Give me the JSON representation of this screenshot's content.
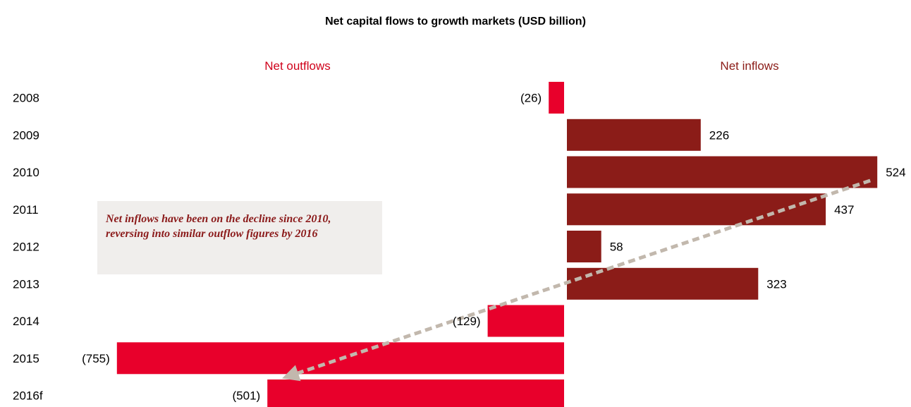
{
  "chart_data": {
    "type": "bar",
    "orientation": "horizontal",
    "title": "Net capital flows to growth markets  (USD billion)",
    "categories": [
      "2008",
      "2009",
      "2010",
      "2011",
      "2012",
      "2013",
      "2014",
      "2015",
      "2016f"
    ],
    "values": [
      -26,
      226,
      524,
      437,
      58,
      323,
      -129,
      -755,
      -501
    ],
    "value_labels": [
      "(26)",
      "226",
      "524",
      "437",
      "58",
      "323",
      "(129)",
      "(755)",
      "(501)"
    ],
    "side_labels": {
      "negative": "Net outflows",
      "positive": "Net inflows"
    },
    "annotation": "Net inflows have been on the decline since 2010, reversing into similar outflow figures by 2016",
    "trend_arrow": {
      "from_category": "2010",
      "to_category": "2016f"
    },
    "colors": {
      "negative": "#e8002b",
      "positive": "#8b1c18",
      "negative_label": "#d0021b",
      "positive_label": "#8b1c18",
      "arrow": "#c2b8ad",
      "annotation_bg": "#f0eeec",
      "annotation_text": "#8b1a1a"
    },
    "grid": false,
    "legend": "none"
  }
}
